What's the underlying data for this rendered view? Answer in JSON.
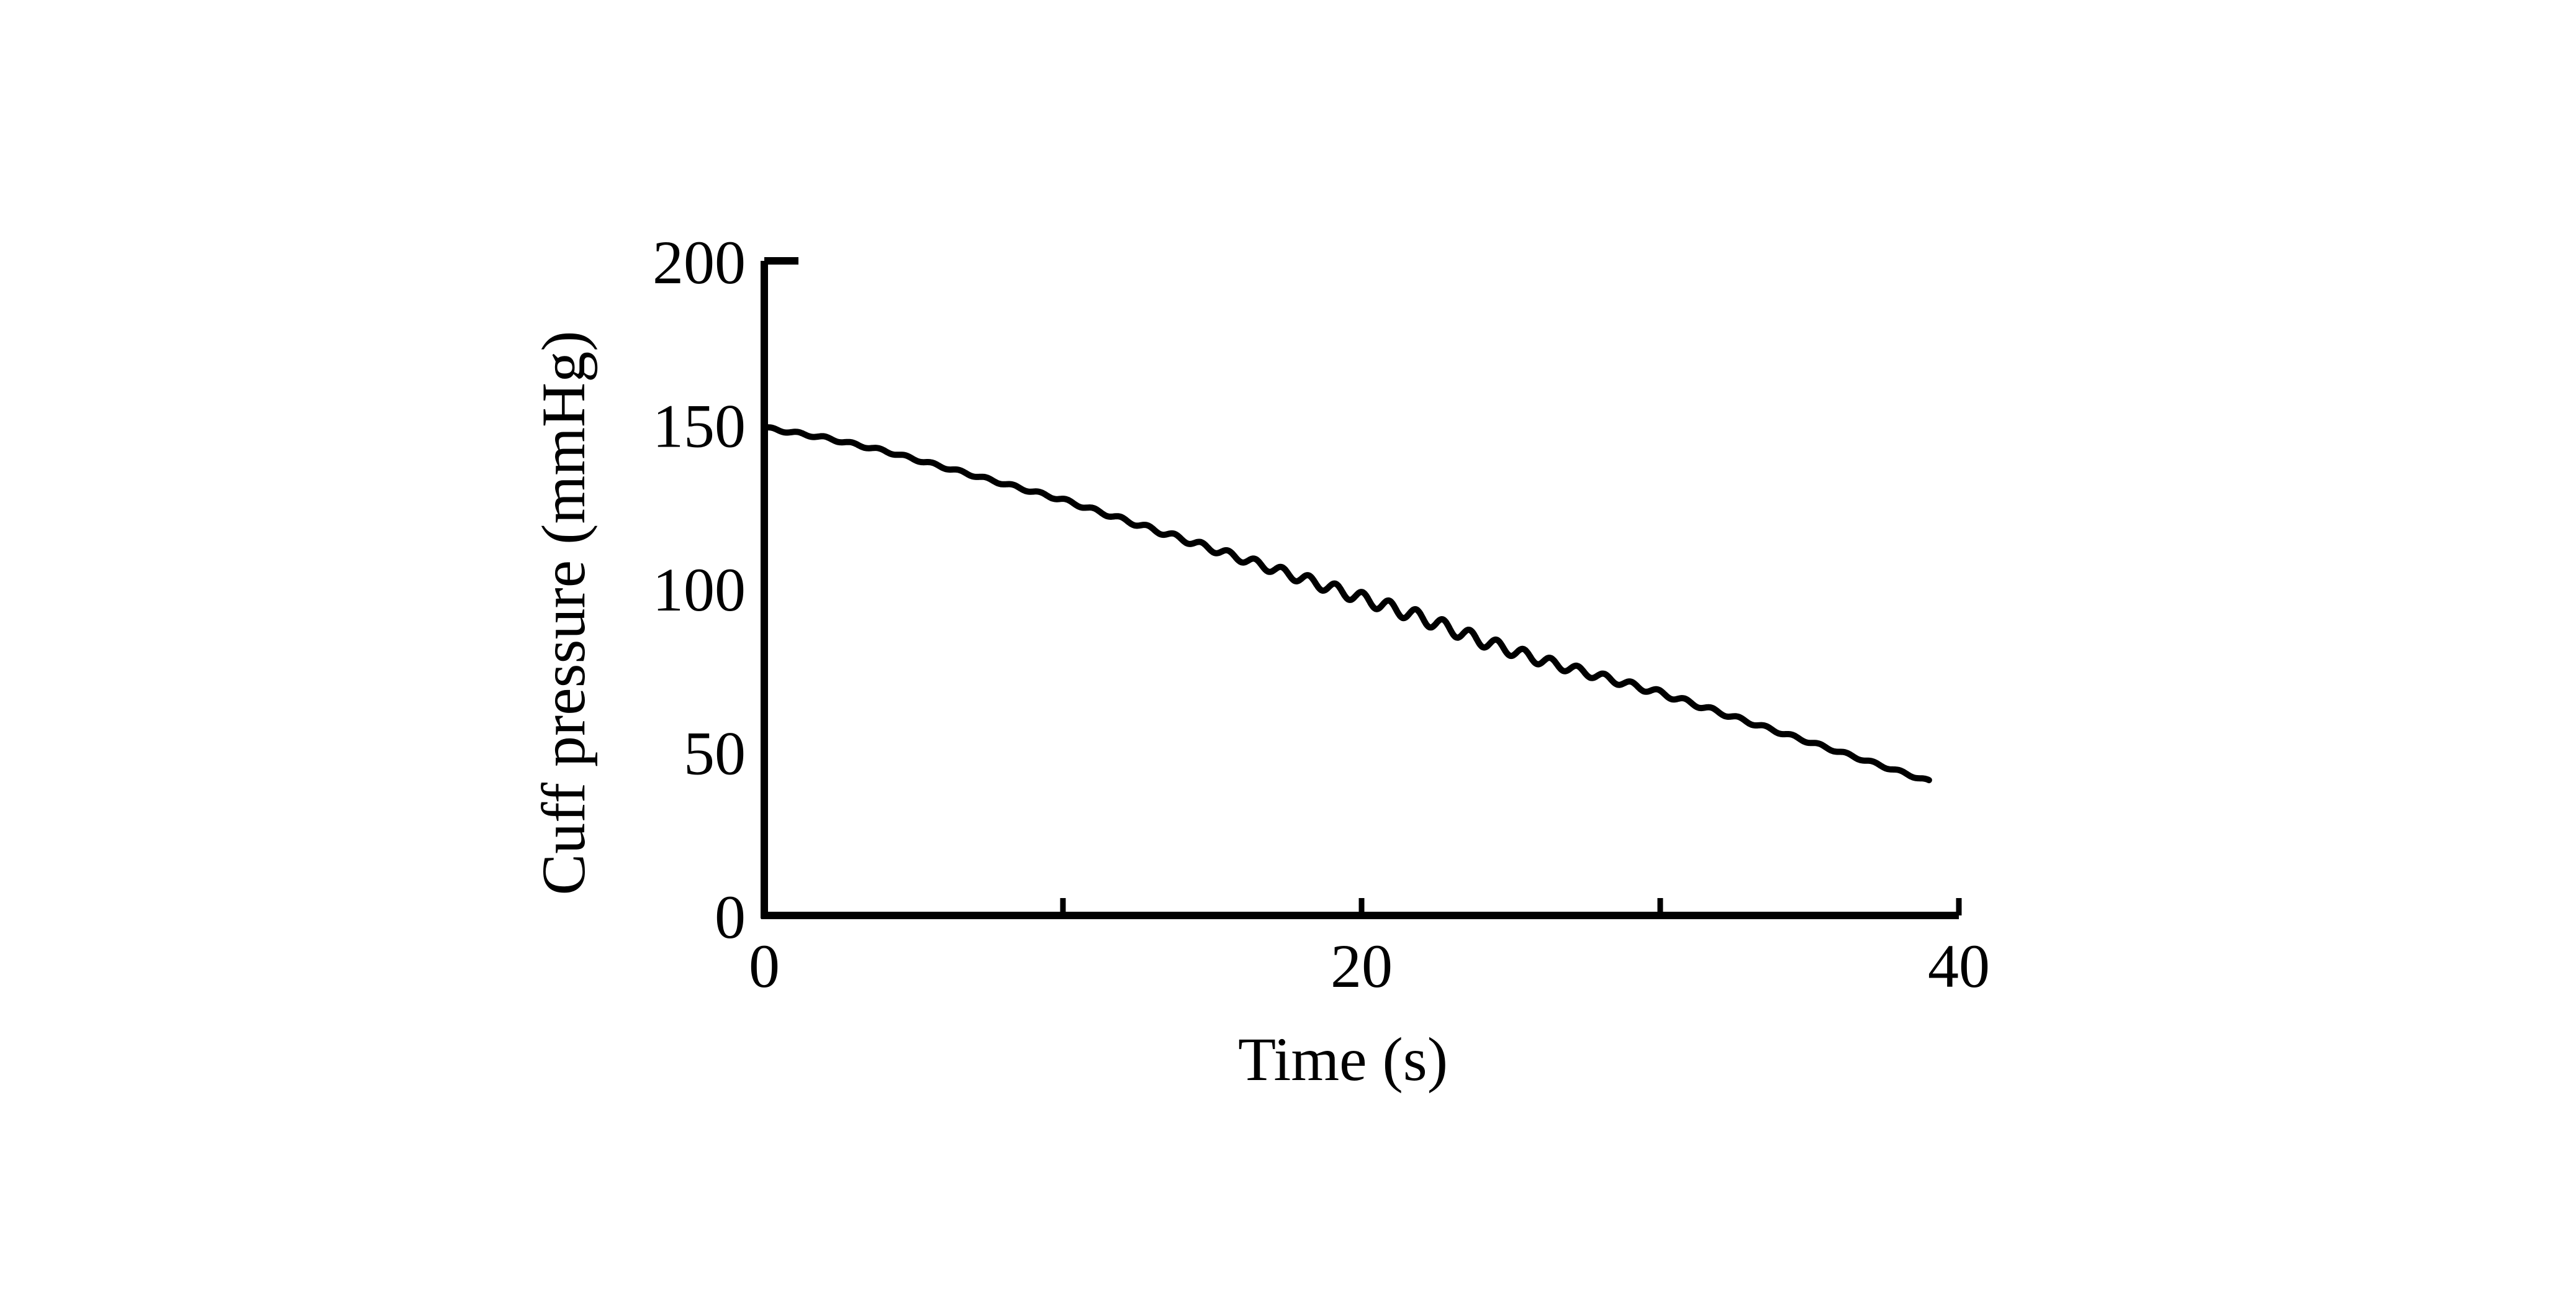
{
  "chart_data": {
    "type": "line",
    "title": "",
    "xlabel": "Time (s)",
    "ylabel": "Cuff pressure (mmHg)",
    "xlim": [
      0,
      40
    ],
    "ylim": [
      0,
      200
    ],
    "x_ticks": [
      0,
      20,
      40
    ],
    "x_minor_ticks": [
      10,
      30
    ],
    "y_ticks": [
      0,
      50,
      100,
      150,
      200
    ],
    "grid": false,
    "legend": "none",
    "line_color": "#000000",
    "oscillation": "small pulsatile oscillations superimposed on the deflation ramp, largest around 20-25 s",
    "series": [
      {
        "x": [
          0,
          2,
          4,
          6,
          8,
          10,
          12,
          14,
          16,
          18,
          20,
          22,
          24,
          26,
          28,
          30,
          32,
          34,
          36,
          38,
          39
        ],
        "values": [
          149,
          146,
          142,
          137,
          132,
          127,
          121,
          115,
          109,
          103,
          97,
          91,
          84,
          78,
          73,
          68,
          62,
          56,
          50,
          44,
          41
        ]
      }
    ]
  }
}
